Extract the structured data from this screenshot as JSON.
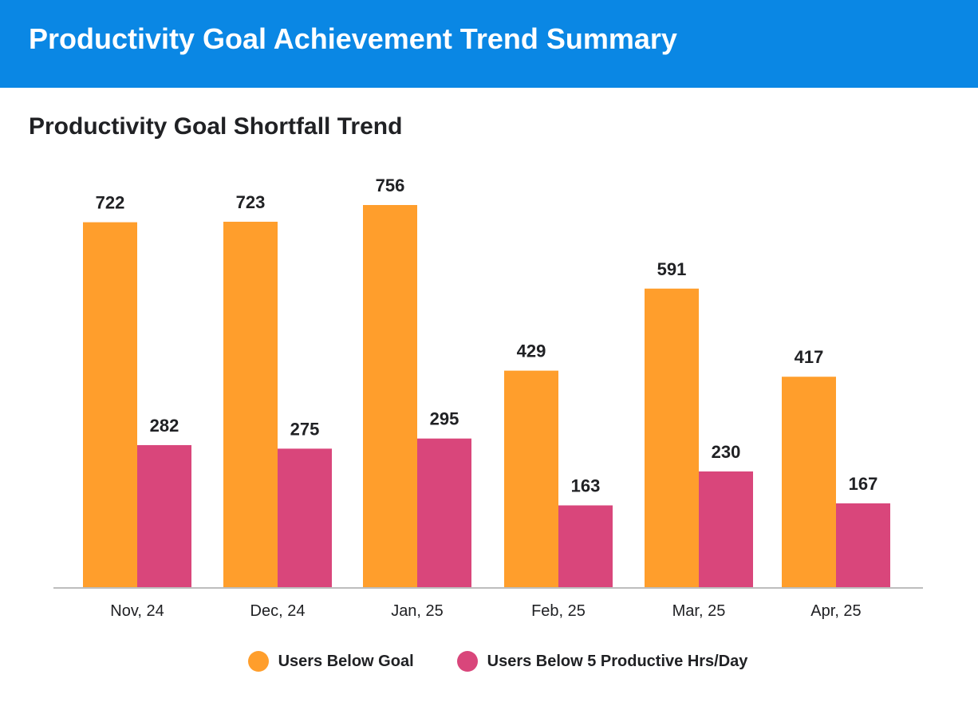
{
  "header": {
    "title": "Productivity Goal Achievement Trend Summary",
    "color": "#0A87E4"
  },
  "chart_data": {
    "type": "bar",
    "title": "Productivity Goal Shortfall Trend",
    "categories": [
      "Nov, 24",
      "Dec, 24",
      "Jan, 25",
      "Feb, 25",
      "Mar, 25",
      "Apr, 25"
    ],
    "series": [
      {
        "name": "Users Below Goal",
        "values": [
          722,
          723,
          756,
          429,
          591,
          417
        ],
        "color": "#FF9E2C"
      },
      {
        "name": "Users Below 5 Productive Hrs/Day",
        "values": [
          282,
          275,
          295,
          163,
          230,
          167
        ],
        "color": "#D9467B"
      }
    ],
    "ylim": [
      0,
      756
    ],
    "grid": false,
    "legend": "bottom-center",
    "data_labels": true
  }
}
